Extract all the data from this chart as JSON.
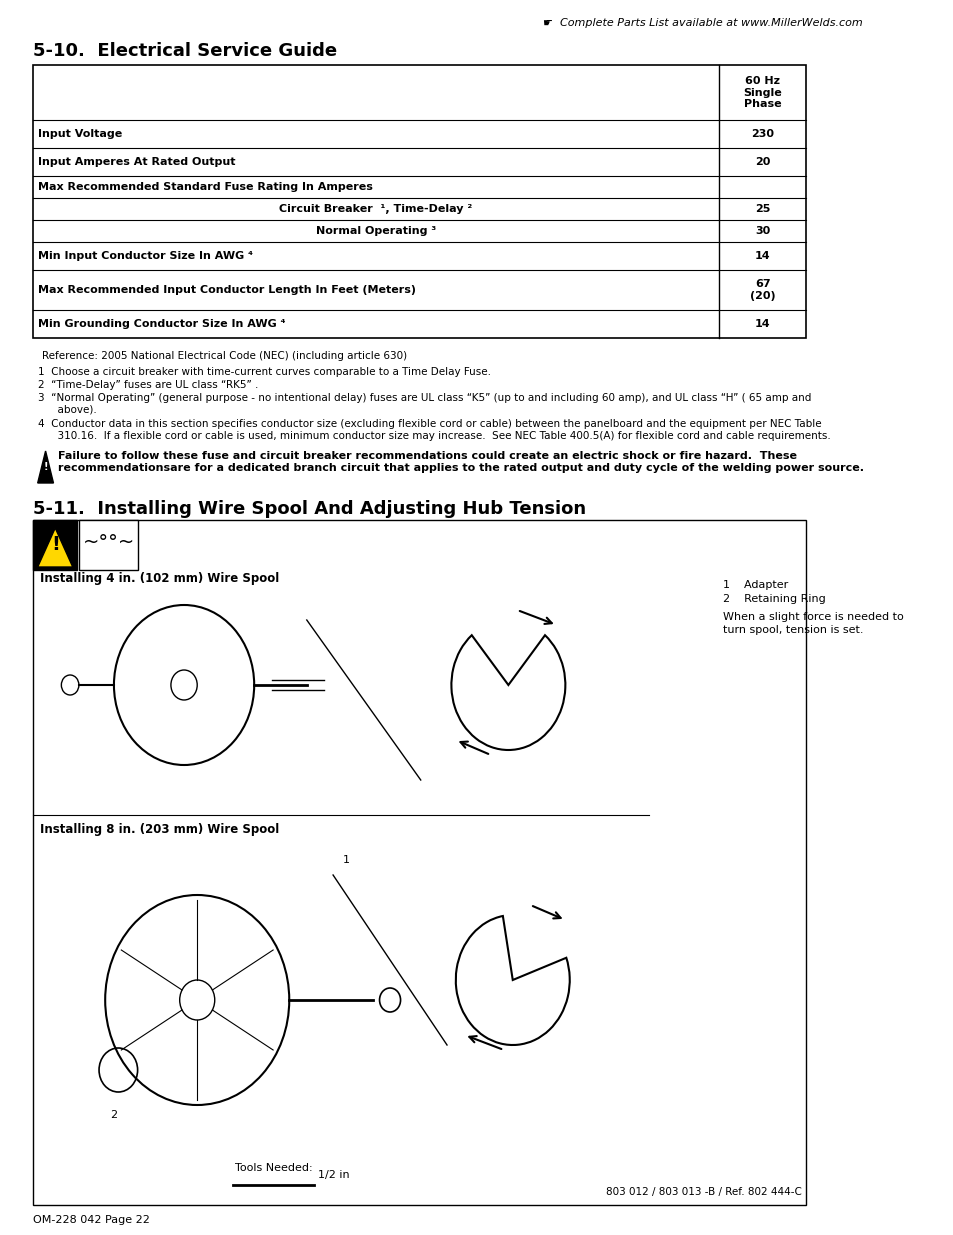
{
  "page_title": "5-10.  Electrical Service Guide",
  "header_note": "☛  Complete Parts List available at www.MillerWelds.com",
  "table_header": "60 Hz\nSingle\nPhase",
  "table_rows": [
    {
      "label": "Input Voltage",
      "value": "230"
    },
    {
      "label": "Input Amperes At Rated Output",
      "value": "20"
    },
    {
      "label": "Max Recommended Standard Fuse Rating In Amperes",
      "value": ""
    },
    {
      "label": "Circuit Breaker  ¹, Time-Delay ²",
      "value": "25",
      "indent": true,
      "center": true
    },
    {
      "label": "Normal Operating ³",
      "value": "30",
      "indent": true,
      "center": true
    },
    {
      "label": "Min Input Conductor Size In AWG ⁴",
      "value": "14"
    },
    {
      "label": "Max Recommended Input Conductor Length In Feet (Meters)",
      "value": "67\n(20)"
    },
    {
      "label": "Min Grounding Conductor Size In AWG ⁴",
      "value": "14"
    }
  ],
  "footnote_ref": "Reference: 2005 National Electrical Code (NEC) (including article 630)",
  "footnotes": [
    "1  Choose a circuit breaker with time-current curves comparable to a Time Delay Fuse.",
    "2  “Time-Delay” fuses are UL class “RK5” .",
    "3  “Normal Operating” (general purpose - no intentional delay) fuses are UL class “K5” (up to and including 60 amp), and UL class “H” ( 65 amp and\n      above).",
    "4  Conductor data in this section specifies conductor size (excluding flexible cord or cable) between the panelboard and the equipment per NEC Table\n      310.16.  If a flexible cord or cable is used, minimum conductor size may increase.  See NEC Table 400.5(A) for flexible cord and cable requirements."
  ],
  "warning_text": "Failure to follow these fuse and circuit breaker recommendations could create an electric shock or fire hazard.  These\nrecommendationsare for a dedicated branch circuit that applies to the rated output and duty cycle of the welding power source.",
  "section2_title": "5-11.  Installing Wire Spool And Adjusting Hub Tension",
  "install_4in_label": "Installing 4 in. (102 mm) Wire Spool",
  "install_8in_label": "Installing 8 in. (203 mm) Wire Spool",
  "parts_list": [
    "1    Adapter",
    "2    Retaining Ring"
  ],
  "parts_note": "When a slight force is needed to\nturn spool, tension is set.",
  "tools_needed": "Tools Needed:",
  "tool_size": "1/2 in",
  "part_number": "803 012 / 803 013 -B / Ref. 802 444-C",
  "page_number": "OM-228 042 Page 22",
  "bg_color": "#ffffff",
  "text_color": "#000000",
  "border_color": "#000000"
}
